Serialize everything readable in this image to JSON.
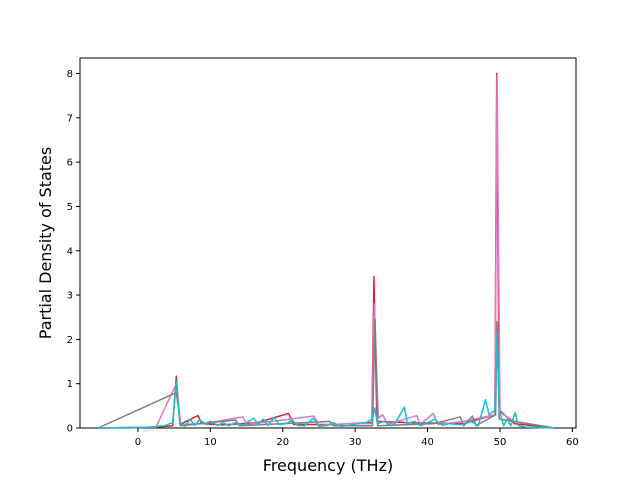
{
  "chart_data": {
    "type": "line",
    "title": "",
    "xlabel": "Frequency (THz)",
    "ylabel": "Partial Density of States",
    "xlim": [
      -8,
      60.5
    ],
    "ylim": [
      0,
      8.35
    ],
    "xticks": [
      0,
      10,
      20,
      30,
      40,
      50,
      60
    ],
    "yticks": [
      0,
      1,
      2,
      3,
      4,
      5,
      6,
      7,
      8
    ],
    "grid": false,
    "legend": "none",
    "series": [
      {
        "color": "#d62728",
        "points": [
          [
            -5.5,
            0
          ],
          [
            2.5,
            0.02
          ],
          [
            4.8,
            0.05
          ],
          [
            5.3,
            1.17
          ],
          [
            5.8,
            0.08
          ],
          [
            8.3,
            0.28
          ],
          [
            8.8,
            0.1
          ],
          [
            11.5,
            0.07
          ],
          [
            16.5,
            0.12
          ],
          [
            20.8,
            0.33
          ],
          [
            21.5,
            0.08
          ],
          [
            27,
            0.08
          ],
          [
            32.3,
            0.12
          ],
          [
            32.6,
            3.42
          ],
          [
            33,
            0.15
          ],
          [
            37,
            0.12
          ],
          [
            45,
            0.1
          ],
          [
            49.3,
            0.3
          ],
          [
            49.55,
            8.0
          ],
          [
            49.9,
            0.4
          ],
          [
            52,
            0.1
          ],
          [
            57.5,
            0
          ]
        ]
      },
      {
        "color": "#e377c2",
        "points": [
          [
            -5.5,
            0
          ],
          [
            2.5,
            0.02
          ],
          [
            5.3,
            1.0
          ],
          [
            5.9,
            0.08
          ],
          [
            9,
            0.1
          ],
          [
            14.5,
            0.25
          ],
          [
            15,
            0.08
          ],
          [
            21,
            0.2
          ],
          [
            24.3,
            0.27
          ],
          [
            25,
            0.06
          ],
          [
            29,
            0.1
          ],
          [
            32.3,
            0.1
          ],
          [
            32.65,
            2.8
          ],
          [
            33.2,
            0.22
          ],
          [
            33.8,
            0.3
          ],
          [
            34.5,
            0.08
          ],
          [
            38.5,
            0.28
          ],
          [
            39,
            0.08
          ],
          [
            40.8,
            0.33
          ],
          [
            41.4,
            0.08
          ],
          [
            45,
            0.15
          ],
          [
            49.3,
            0.3
          ],
          [
            49.6,
            7.95
          ],
          [
            50,
            0.35
          ],
          [
            52,
            0.15
          ],
          [
            57.5,
            0
          ]
        ]
      },
      {
        "color": "#7f7f7f",
        "points": [
          [
            -5.5,
            0
          ],
          [
            5.3,
            0.8
          ],
          [
            5.9,
            0.05
          ],
          [
            13.5,
            0.18
          ],
          [
            14,
            0.05
          ],
          [
            26.5,
            0.15
          ],
          [
            27,
            0.05
          ],
          [
            32.4,
            0.05
          ],
          [
            32.75,
            2.45
          ],
          [
            33.1,
            0.05
          ],
          [
            41,
            0.1
          ],
          [
            44.5,
            0.25
          ],
          [
            45,
            0.05
          ],
          [
            46.2,
            0.27
          ],
          [
            46.7,
            0.05
          ],
          [
            49.4,
            0.3
          ],
          [
            49.6,
            2.4
          ],
          [
            49.9,
            0.2
          ],
          [
            57.5,
            0
          ]
        ]
      },
      {
        "color": "#17becf",
        "points": [
          [
            -5.5,
            0
          ],
          [
            -1,
            0
          ],
          [
            2.5,
            0.03
          ],
          [
            3.8,
            0.06
          ],
          [
            4.8,
            0.12
          ],
          [
            5.3,
            1.05
          ],
          [
            5.8,
            0.1
          ],
          [
            6.5,
            0.04
          ],
          [
            7.2,
            0.2
          ],
          [
            7.8,
            0.06
          ],
          [
            8.5,
            0.18
          ],
          [
            9.3,
            0.1
          ],
          [
            10,
            0.15
          ],
          [
            11,
            0.06
          ],
          [
            11.8,
            0.12
          ],
          [
            12.5,
            0.05
          ],
          [
            13.5,
            0.12
          ],
          [
            14.5,
            0.06
          ],
          [
            15.2,
            0.14
          ],
          [
            16,
            0.22
          ],
          [
            16.6,
            0.08
          ],
          [
            17.3,
            0.2
          ],
          [
            18,
            0.06
          ],
          [
            18.8,
            0.24
          ],
          [
            19.5,
            0.08
          ],
          [
            20.5,
            0.1
          ],
          [
            21.3,
            0.18
          ],
          [
            22,
            0.06
          ],
          [
            23,
            0.05
          ],
          [
            24.2,
            0.22
          ],
          [
            25,
            0.04
          ],
          [
            26,
            0.05
          ],
          [
            27,
            0.12
          ],
          [
            28,
            0.04
          ],
          [
            29,
            0.05
          ],
          [
            30.5,
            0.1
          ],
          [
            31.5,
            0.12
          ],
          [
            32.4,
            0.2
          ],
          [
            32.7,
            0.45
          ],
          [
            33.1,
            0.1
          ],
          [
            34,
            0.15
          ],
          [
            35,
            0.05
          ],
          [
            35.5,
            0.1
          ],
          [
            36.8,
            0.47
          ],
          [
            37.2,
            0.1
          ],
          [
            38.2,
            0.15
          ],
          [
            39,
            0.05
          ],
          [
            40,
            0.12
          ],
          [
            41,
            0.2
          ],
          [
            42,
            0.06
          ],
          [
            43,
            0.1
          ],
          [
            44,
            0.08
          ],
          [
            45,
            0.08
          ],
          [
            46,
            0.15
          ],
          [
            47,
            0.05
          ],
          [
            48,
            0.64
          ],
          [
            48.5,
            0.3
          ],
          [
            49.3,
            0.4
          ],
          [
            49.6,
            2.15
          ],
          [
            49.9,
            0.4
          ],
          [
            50.5,
            0.05
          ],
          [
            51,
            0.2
          ],
          [
            51.5,
            0.05
          ],
          [
            52.1,
            0.35
          ],
          [
            52.5,
            0.06
          ],
          [
            53.5,
            0.02
          ],
          [
            57.5,
            0
          ]
        ]
      }
    ]
  }
}
